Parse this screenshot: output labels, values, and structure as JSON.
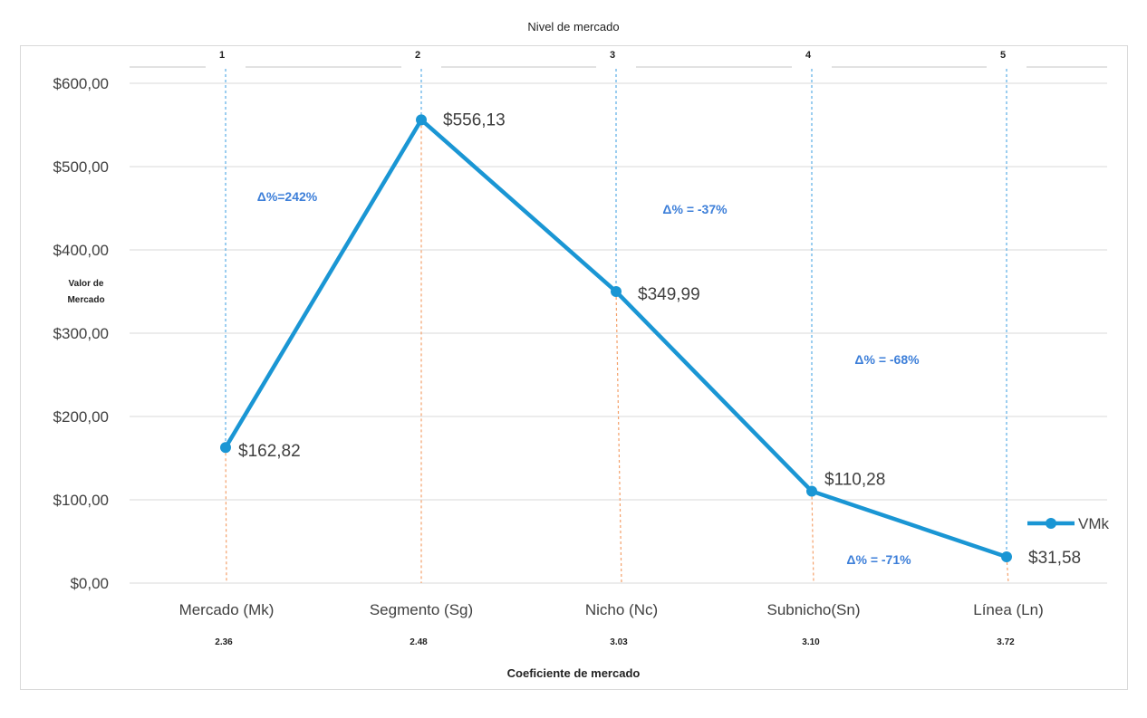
{
  "page": {
    "top_title": "Nivel de mercado",
    "y_title_line1": "Valor de",
    "y_title_line2": "Mercado",
    "x_title": "Coeficiente de mercado"
  },
  "colors": {
    "series": "#1a96d4",
    "level_guides": "#5aaee6",
    "value_guides": "#f4a06a",
    "gridline": "#d9d9d9",
    "annotation_text": "#3d7fd9"
  },
  "chart_data": {
    "type": "line",
    "title": "",
    "xlabel": "Coeficiente de mercado",
    "ylabel": "Valor de Mercado",
    "categories": [
      "Mercado (Mk)",
      "Segmento (Sg)",
      "Nicho (Nc)",
      "Subnicho(Sn)",
      "Línea (Ln)"
    ],
    "coefficients": [
      "2.36",
      "2.48",
      "3.03",
      "3.10",
      "3.72"
    ],
    "levels": [
      "1",
      "2",
      "3",
      "4",
      "5"
    ],
    "series": [
      {
        "name": "VMk",
        "values": [
          162.82,
          556.13,
          349.99,
          110.28,
          31.58
        ],
        "labels": [
          "$162,82",
          "$556,13",
          "$349,99",
          "$110,28",
          "$31,58"
        ]
      }
    ],
    "ylim": [
      0,
      600
    ],
    "yticks": [
      0,
      100,
      200,
      300,
      400,
      500,
      600
    ],
    "ytick_labels": [
      "$0,00",
      "$100,00",
      "$200,00",
      "$300,00",
      "$400,00",
      "$500,00",
      "$600,00"
    ],
    "annotations": [
      "Δ%=242%",
      "Δ% = -37%",
      "Δ% = -68%",
      "Δ% = -71%"
    ],
    "grid": true,
    "legend_position": "right"
  }
}
